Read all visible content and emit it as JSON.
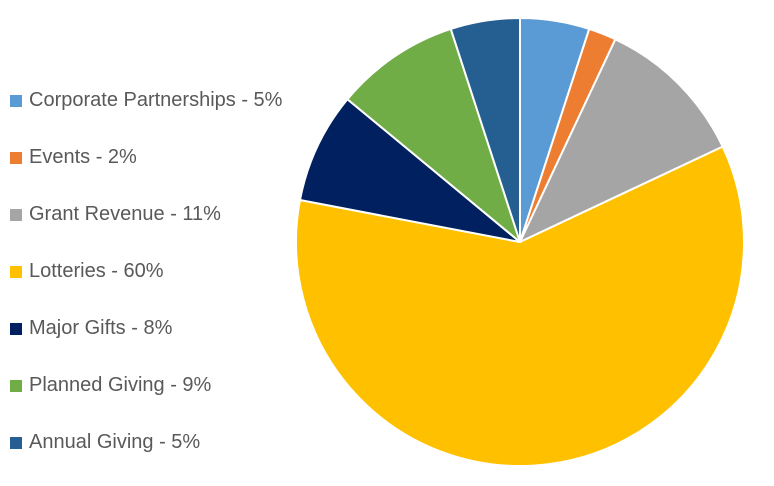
{
  "chart_data": {
    "type": "pie",
    "slices": [
      {
        "label": "Corporate Partnerships - 5%",
        "value": 5,
        "color": "#5B9BD5"
      },
      {
        "label": "Events - 2%",
        "value": 2,
        "color": "#ED7D31"
      },
      {
        "label": "Grant Revenue - 11%",
        "value": 11,
        "color": "#A5A5A5"
      },
      {
        "label": "Lotteries - 60%",
        "value": 60,
        "color": "#FFC000"
      },
      {
        "label": "Major Gifts - 8%",
        "value": 8,
        "color": "#002060"
      },
      {
        "label": "Planned Giving - 9%",
        "value": 9,
        "color": "#70AD47"
      },
      {
        "label": "Annual Giving - 5%",
        "value": 5,
        "color": "#255E91"
      }
    ],
    "legend_placement": "left"
  }
}
